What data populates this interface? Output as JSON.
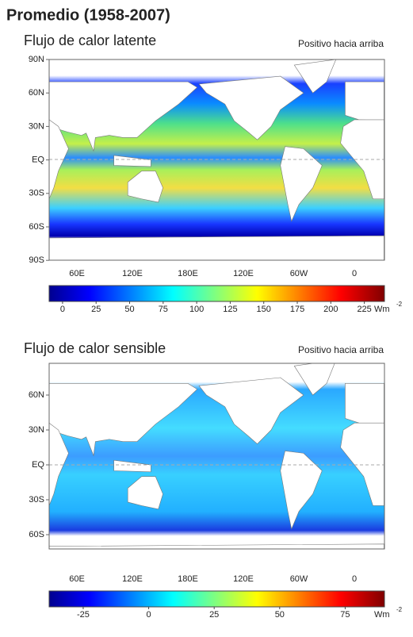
{
  "title": "Promedio (1958-2007)",
  "panels": [
    {
      "title": "Flujo de calor latente",
      "note": "Positivo hacia arriba",
      "lat_labels": [
        "90N",
        "60N",
        "30N",
        "EQ",
        "30S",
        "60S",
        "90S"
      ],
      "lon_labels": [
        "60E",
        "120E",
        "180E",
        "120E",
        "60W",
        "0"
      ],
      "colorbar": {
        "lim": [
          -10,
          240
        ],
        "ticks": [
          0,
          25,
          50,
          75,
          100,
          125,
          150,
          175,
          200,
          225
        ],
        "unit": "Wm",
        "unit_exp": "-2"
      }
    },
    {
      "title": "Flujo de calor sensible",
      "note": "Positivo hacia arriba",
      "lat_labels": [
        "60N",
        "30N",
        "EQ",
        "30S",
        "60S"
      ],
      "lon_labels": [
        "60E",
        "120E",
        "180E",
        "120E",
        "60W",
        "0"
      ],
      "colorbar": {
        "lim": [
          -38,
          90
        ],
        "ticks": [
          -25,
          0,
          25,
          50,
          75
        ],
        "unit": "Wm",
        "unit_exp": "-2"
      }
    }
  ]
}
